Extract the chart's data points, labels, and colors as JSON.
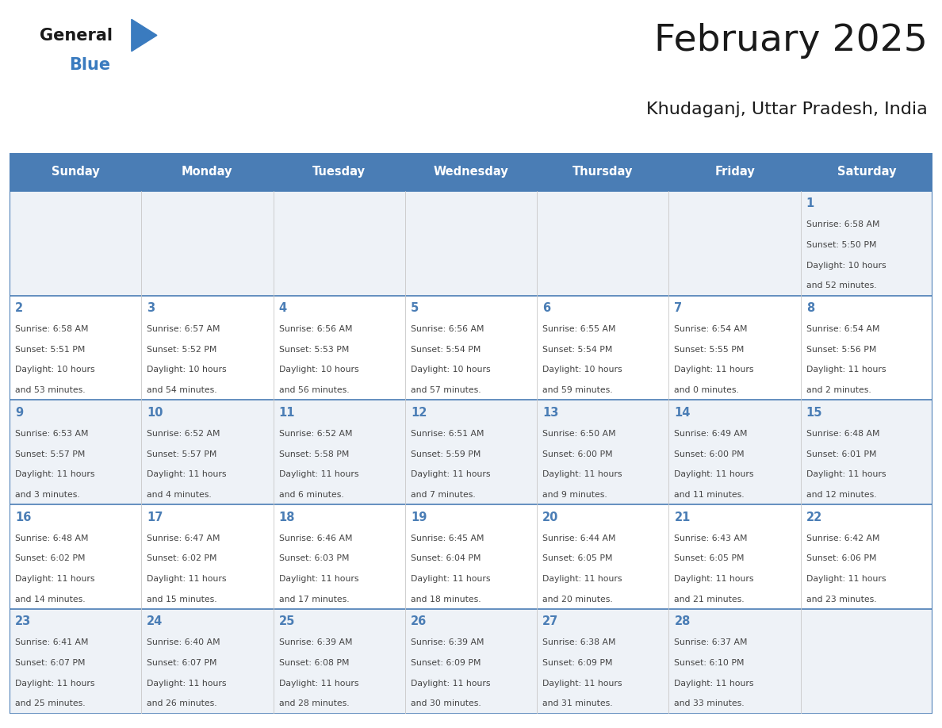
{
  "title": "February 2025",
  "subtitle": "Khudaganj, Uttar Pradesh, India",
  "header_bg": "#4a7db5",
  "header_text_color": "#ffffff",
  "cell_bg_even": "#eef2f7",
  "cell_bg_odd": "#ffffff",
  "day_number_color": "#4a7db5",
  "info_text_color": "#444444",
  "grid_line_color": "#4a7db5",
  "days_of_week": [
    "Sunday",
    "Monday",
    "Tuesday",
    "Wednesday",
    "Thursday",
    "Friday",
    "Saturday"
  ],
  "logo_general_color": "#1a1a1a",
  "logo_blue_color": "#3a7bbf",
  "calendar_data": [
    [
      null,
      null,
      null,
      null,
      null,
      null,
      {
        "day": 1,
        "sunrise": "6:58 AM",
        "sunset": "5:50 PM",
        "daylight_line1": "Daylight: 10 hours",
        "daylight_line2": "and 52 minutes."
      }
    ],
    [
      {
        "day": 2,
        "sunrise": "6:58 AM",
        "sunset": "5:51 PM",
        "daylight_line1": "Daylight: 10 hours",
        "daylight_line2": "and 53 minutes."
      },
      {
        "day": 3,
        "sunrise": "6:57 AM",
        "sunset": "5:52 PM",
        "daylight_line1": "Daylight: 10 hours",
        "daylight_line2": "and 54 minutes."
      },
      {
        "day": 4,
        "sunrise": "6:56 AM",
        "sunset": "5:53 PM",
        "daylight_line1": "Daylight: 10 hours",
        "daylight_line2": "and 56 minutes."
      },
      {
        "day": 5,
        "sunrise": "6:56 AM",
        "sunset": "5:54 PM",
        "daylight_line1": "Daylight: 10 hours",
        "daylight_line2": "and 57 minutes."
      },
      {
        "day": 6,
        "sunrise": "6:55 AM",
        "sunset": "5:54 PM",
        "daylight_line1": "Daylight: 10 hours",
        "daylight_line2": "and 59 minutes."
      },
      {
        "day": 7,
        "sunrise": "6:54 AM",
        "sunset": "5:55 PM",
        "daylight_line1": "Daylight: 11 hours",
        "daylight_line2": "and 0 minutes."
      },
      {
        "day": 8,
        "sunrise": "6:54 AM",
        "sunset": "5:56 PM",
        "daylight_line1": "Daylight: 11 hours",
        "daylight_line2": "and 2 minutes."
      }
    ],
    [
      {
        "day": 9,
        "sunrise": "6:53 AM",
        "sunset": "5:57 PM",
        "daylight_line1": "Daylight: 11 hours",
        "daylight_line2": "and 3 minutes."
      },
      {
        "day": 10,
        "sunrise": "6:52 AM",
        "sunset": "5:57 PM",
        "daylight_line1": "Daylight: 11 hours",
        "daylight_line2": "and 4 minutes."
      },
      {
        "day": 11,
        "sunrise": "6:52 AM",
        "sunset": "5:58 PM",
        "daylight_line1": "Daylight: 11 hours",
        "daylight_line2": "and 6 minutes."
      },
      {
        "day": 12,
        "sunrise": "6:51 AM",
        "sunset": "5:59 PM",
        "daylight_line1": "Daylight: 11 hours",
        "daylight_line2": "and 7 minutes."
      },
      {
        "day": 13,
        "sunrise": "6:50 AM",
        "sunset": "6:00 PM",
        "daylight_line1": "Daylight: 11 hours",
        "daylight_line2": "and 9 minutes."
      },
      {
        "day": 14,
        "sunrise": "6:49 AM",
        "sunset": "6:00 PM",
        "daylight_line1": "Daylight: 11 hours",
        "daylight_line2": "and 11 minutes."
      },
      {
        "day": 15,
        "sunrise": "6:48 AM",
        "sunset": "6:01 PM",
        "daylight_line1": "Daylight: 11 hours",
        "daylight_line2": "and 12 minutes."
      }
    ],
    [
      {
        "day": 16,
        "sunrise": "6:48 AM",
        "sunset": "6:02 PM",
        "daylight_line1": "Daylight: 11 hours",
        "daylight_line2": "and 14 minutes."
      },
      {
        "day": 17,
        "sunrise": "6:47 AM",
        "sunset": "6:02 PM",
        "daylight_line1": "Daylight: 11 hours",
        "daylight_line2": "and 15 minutes."
      },
      {
        "day": 18,
        "sunrise": "6:46 AM",
        "sunset": "6:03 PM",
        "daylight_line1": "Daylight: 11 hours",
        "daylight_line2": "and 17 minutes."
      },
      {
        "day": 19,
        "sunrise": "6:45 AM",
        "sunset": "6:04 PM",
        "daylight_line1": "Daylight: 11 hours",
        "daylight_line2": "and 18 minutes."
      },
      {
        "day": 20,
        "sunrise": "6:44 AM",
        "sunset": "6:05 PM",
        "daylight_line1": "Daylight: 11 hours",
        "daylight_line2": "and 20 minutes."
      },
      {
        "day": 21,
        "sunrise": "6:43 AM",
        "sunset": "6:05 PM",
        "daylight_line1": "Daylight: 11 hours",
        "daylight_line2": "and 21 minutes."
      },
      {
        "day": 22,
        "sunrise": "6:42 AM",
        "sunset": "6:06 PM",
        "daylight_line1": "Daylight: 11 hours",
        "daylight_line2": "and 23 minutes."
      }
    ],
    [
      {
        "day": 23,
        "sunrise": "6:41 AM",
        "sunset": "6:07 PM",
        "daylight_line1": "Daylight: 11 hours",
        "daylight_line2": "and 25 minutes."
      },
      {
        "day": 24,
        "sunrise": "6:40 AM",
        "sunset": "6:07 PM",
        "daylight_line1": "Daylight: 11 hours",
        "daylight_line2": "and 26 minutes."
      },
      {
        "day": 25,
        "sunrise": "6:39 AM",
        "sunset": "6:08 PM",
        "daylight_line1": "Daylight: 11 hours",
        "daylight_line2": "and 28 minutes."
      },
      {
        "day": 26,
        "sunrise": "6:39 AM",
        "sunset": "6:09 PM",
        "daylight_line1": "Daylight: 11 hours",
        "daylight_line2": "and 30 minutes."
      },
      {
        "day": 27,
        "sunrise": "6:38 AM",
        "sunset": "6:09 PM",
        "daylight_line1": "Daylight: 11 hours",
        "daylight_line2": "and 31 minutes."
      },
      {
        "day": 28,
        "sunrise": "6:37 AM",
        "sunset": "6:10 PM",
        "daylight_line1": "Daylight: 11 hours",
        "daylight_line2": "and 33 minutes."
      },
      null
    ]
  ]
}
